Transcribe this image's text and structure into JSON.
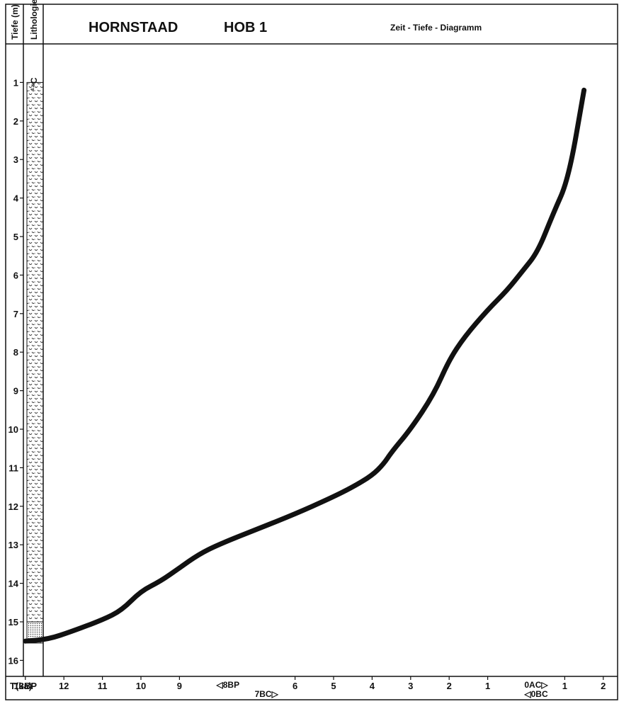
{
  "chart_data": {
    "type": "line",
    "title_parts": [
      "HORNSTAAD",
      "HOB 1"
    ],
    "subtitle": "Zeit - Tiefe - Diagramm",
    "column_headers": {
      "depth": "Tiefe (m)",
      "lithology": "Lithologie",
      "lithology_prefix": "¹⁴C"
    },
    "xlabel": "T(ka)",
    "ylim": [
      16.5,
      0.0
    ],
    "y_ticks": [
      1,
      2,
      3,
      4,
      5,
      6,
      7,
      8,
      9,
      10,
      11,
      12,
      13,
      14,
      15,
      16
    ],
    "x_ticks": [
      {
        "label": "13BP",
        "x": 13
      },
      {
        "label": "12",
        "x": 12
      },
      {
        "label": "11",
        "x": 11
      },
      {
        "label": "10",
        "x": 10
      },
      {
        "label": "9",
        "x": 9
      },
      {
        "label": "6",
        "x": 6.0
      },
      {
        "label": "5",
        "x": 5.0
      },
      {
        "label": "4",
        "x": 4.0
      },
      {
        "label": "3",
        "x": 3.0
      },
      {
        "label": "2",
        "x": 2.0
      },
      {
        "label": "1",
        "x": 1.0
      },
      {
        "label": "1",
        "x": -1.0
      },
      {
        "label": "2",
        "x": -2.0
      }
    ],
    "x_markers": [
      {
        "label": "◁8BP",
        "x": 8,
        "row": 1
      },
      {
        "label": "7BC▷",
        "x": 7.0,
        "row": 2
      },
      {
        "label": "0AC▷",
        "x": 0.0,
        "row": 1
      },
      {
        "label": "◁0BC",
        "x": 0.0,
        "row": 2
      }
    ],
    "series": [
      {
        "color": "#111111",
        "x": [
          13.0,
          12.4,
          11.8,
          11.0,
          10.5,
          10.0,
          9.5,
          9.0,
          8.5,
          8.0,
          7.0,
          6.0,
          5.1,
          4.5,
          4.0,
          3.7,
          3.5,
          3.0,
          2.4,
          2.0,
          1.6,
          1.0,
          0.5,
          0.1,
          -0.3,
          -0.7,
          -1.1,
          -1.5
        ],
        "y": [
          15.5,
          15.45,
          15.25,
          14.95,
          14.7,
          14.2,
          13.95,
          13.6,
          13.25,
          13.0,
          12.6,
          12.2,
          11.8,
          11.5,
          11.2,
          10.9,
          10.6,
          10.0,
          9.1,
          8.2,
          7.6,
          6.9,
          6.4,
          5.9,
          5.4,
          4.4,
          3.5,
          1.2
        ]
      }
    ],
    "lithology": {
      "top": 1.0,
      "bottom": 15.55,
      "units": [
        {
          "from": 1.0,
          "to": 15.0,
          "pattern": "chara"
        },
        {
          "from": 15.0,
          "to": 15.5,
          "pattern": "dots"
        },
        {
          "from": 15.5,
          "to": 15.55,
          "pattern": "clay"
        }
      ]
    }
  }
}
